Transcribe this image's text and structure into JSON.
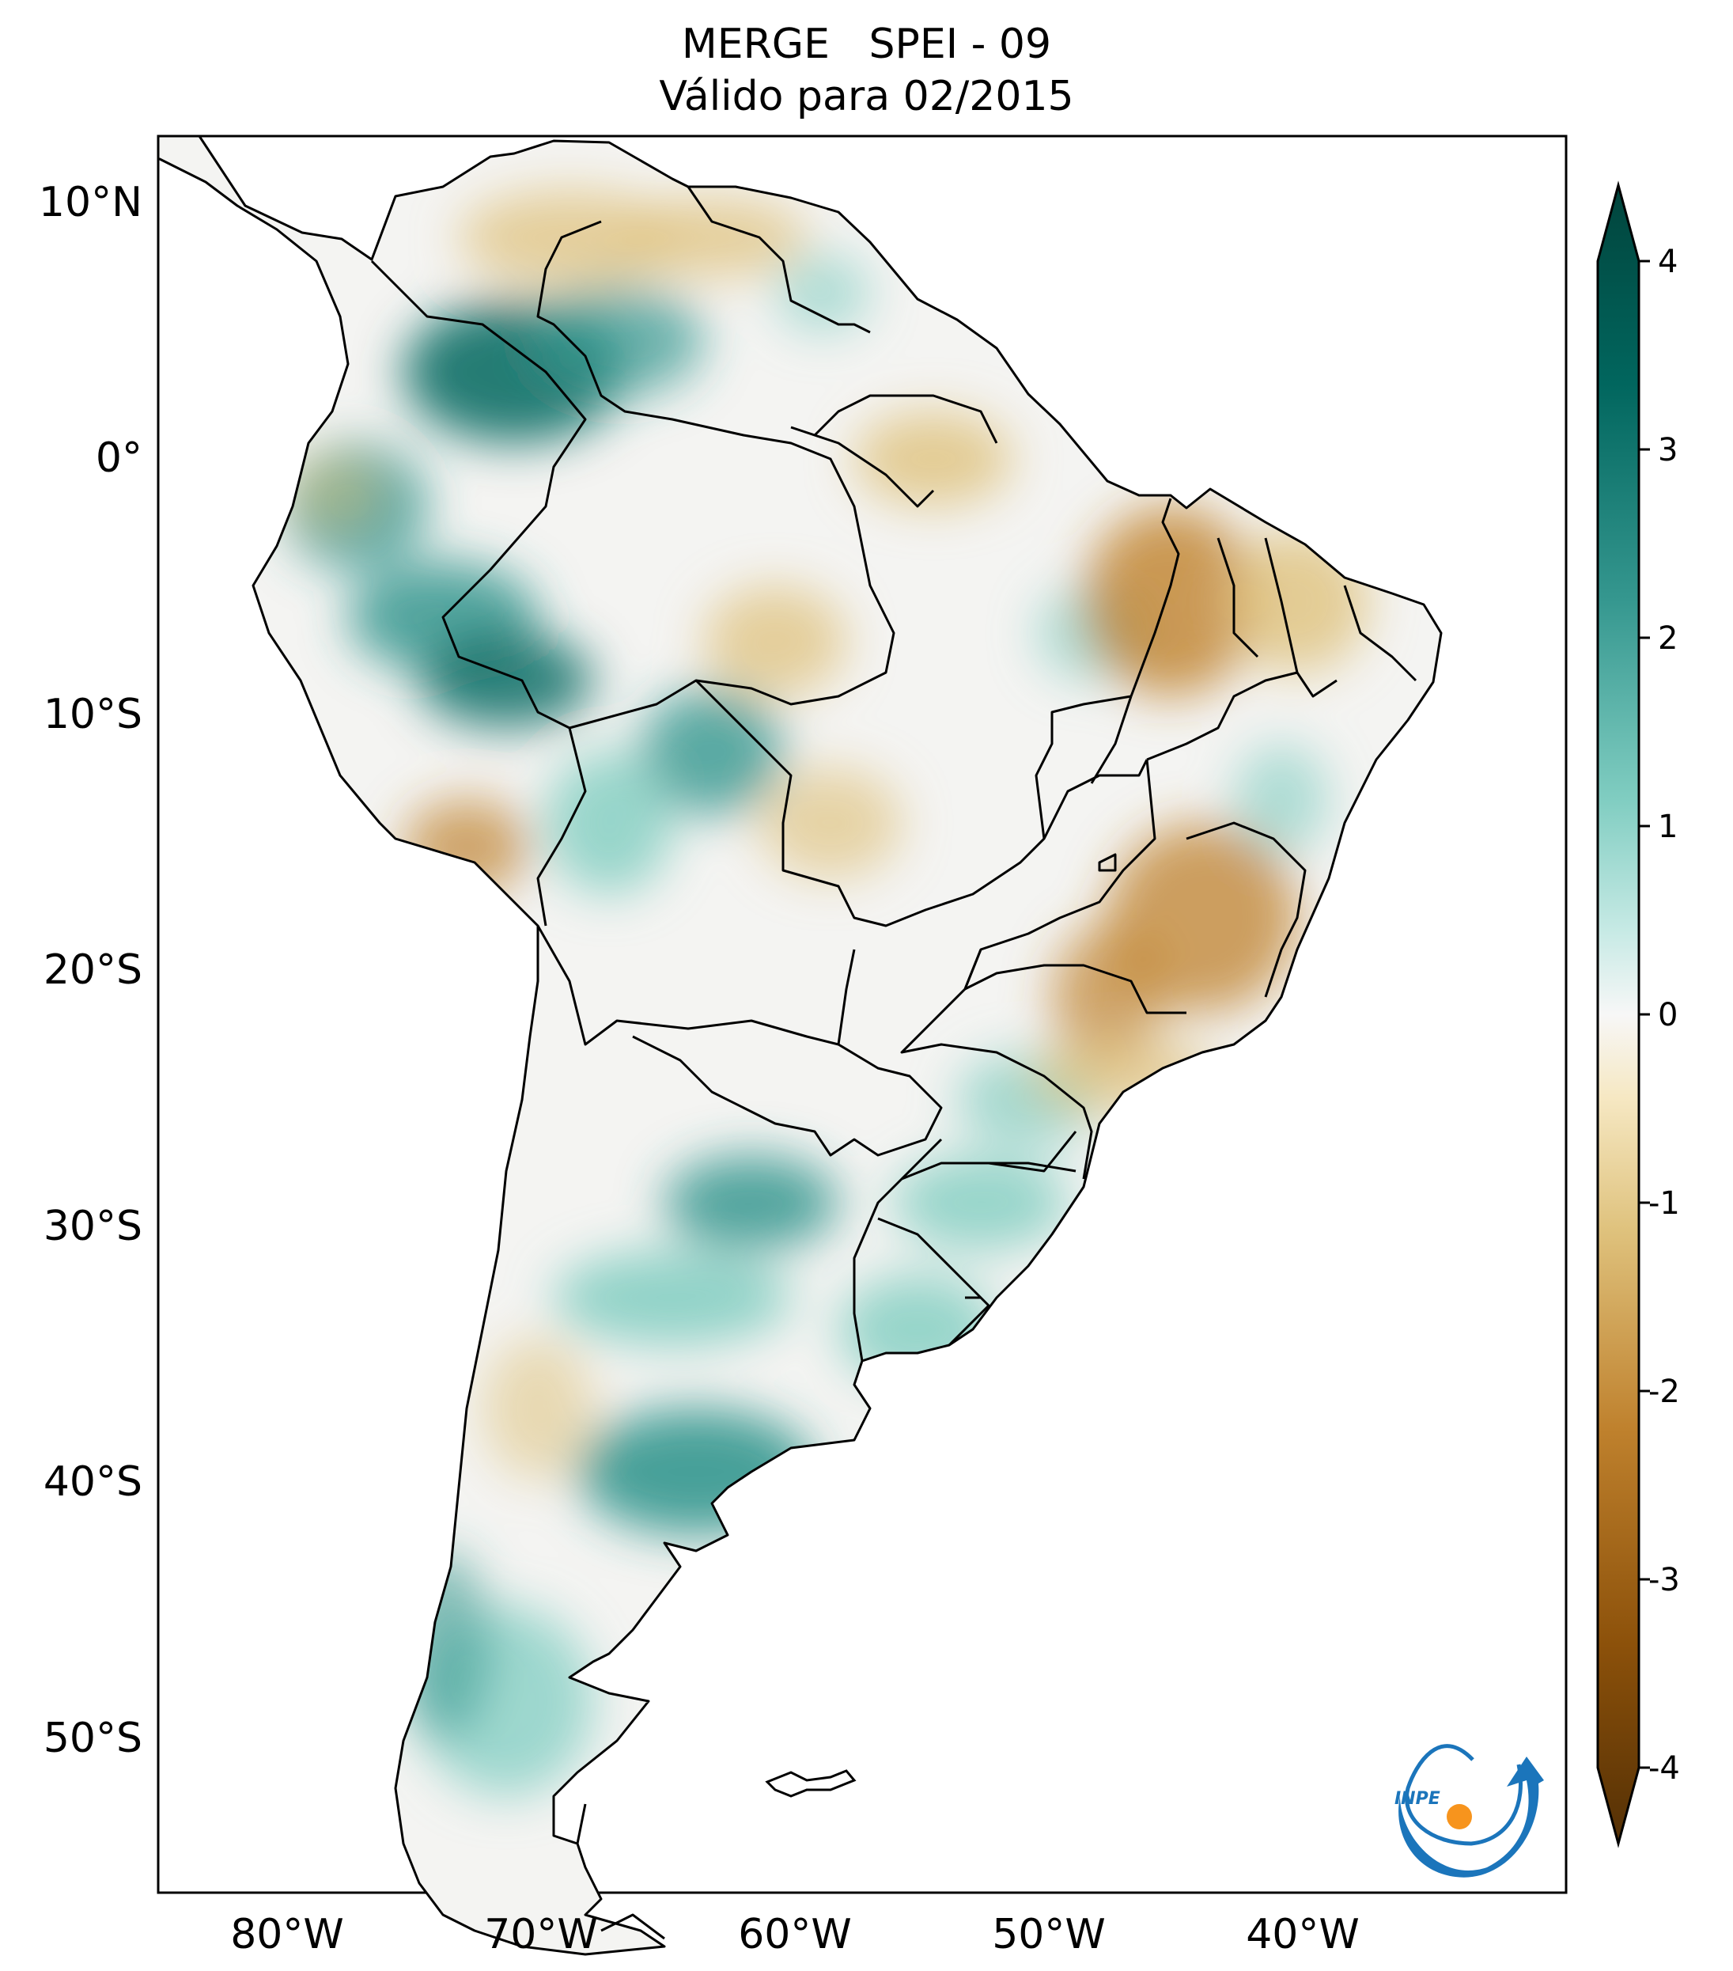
{
  "title": {
    "line1": "MERGE   SPEI - 09",
    "line2": "Válido para 02/2015"
  },
  "map": {
    "lat_labels": [
      "10°N",
      "0°",
      "10°S",
      "20°S",
      "30°S",
      "40°S",
      "50°S"
    ],
    "lon_labels": [
      "80°W",
      "70°W",
      "60°W",
      "50°W",
      "40°W"
    ],
    "lat_values": [
      10,
      0,
      -10,
      -20,
      -30,
      -40,
      -50
    ],
    "lon_values": [
      -80,
      -70,
      -60,
      -50,
      -40
    ],
    "lon_range": [
      -85,
      -29.5
    ],
    "lat_range": [
      -56,
      12.5
    ],
    "field": "SPEI",
    "palette": "brown-white-teal (BrBG)",
    "dry_color": "#8c510a",
    "wet_color": "#01665e"
  },
  "colorbar": {
    "ticks": [
      "4",
      "3",
      "2",
      "1",
      "0",
      "-1",
      "-2",
      "-3",
      "-4"
    ],
    "tick_values": [
      4,
      3,
      2,
      1,
      0,
      -1,
      -2,
      -3,
      -4
    ],
    "extend": "both"
  },
  "logo": {
    "text": "INPE",
    "colors": [
      "#1b75bb",
      "#f7941d"
    ]
  }
}
